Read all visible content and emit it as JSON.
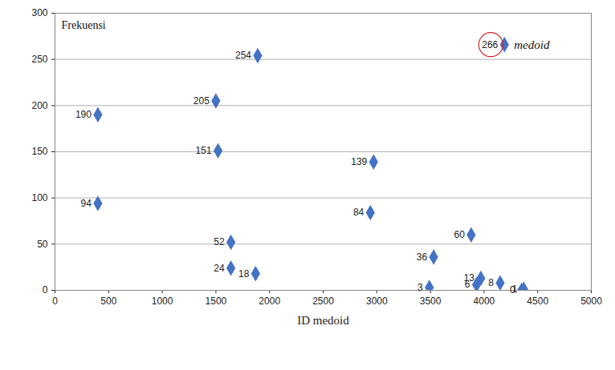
{
  "chart_data": {
    "type": "scatter",
    "x_label": "ID medoid",
    "y_label": "Frekuensi",
    "series": [
      {
        "name": "medoid",
        "color": "#4472c4",
        "marker": "diamond",
        "x": [
          400,
          400,
          1500,
          1520,
          1890,
          1640,
          1640,
          1870,
          2970,
          2940,
          3880,
          3530,
          3490,
          3970,
          4150,
          3930,
          4370,
          4350,
          4190
        ],
        "values": [
          190,
          94,
          205,
          151,
          254,
          52,
          24,
          18,
          139,
          84,
          60,
          36,
          3,
          13,
          8,
          6,
          1,
          0,
          266
        ]
      }
    ],
    "xlim": [
      0,
      5000
    ],
    "xticks": [
      0,
      500,
      1000,
      1500,
      2000,
      2500,
      3000,
      3500,
      4000,
      4500,
      5000
    ],
    "ylim": [
      0,
      300
    ],
    "yticks": [
      0,
      50,
      100,
      150,
      200,
      250,
      300
    ],
    "grid": true,
    "data_labels": true,
    "legend": "top-right"
  }
}
